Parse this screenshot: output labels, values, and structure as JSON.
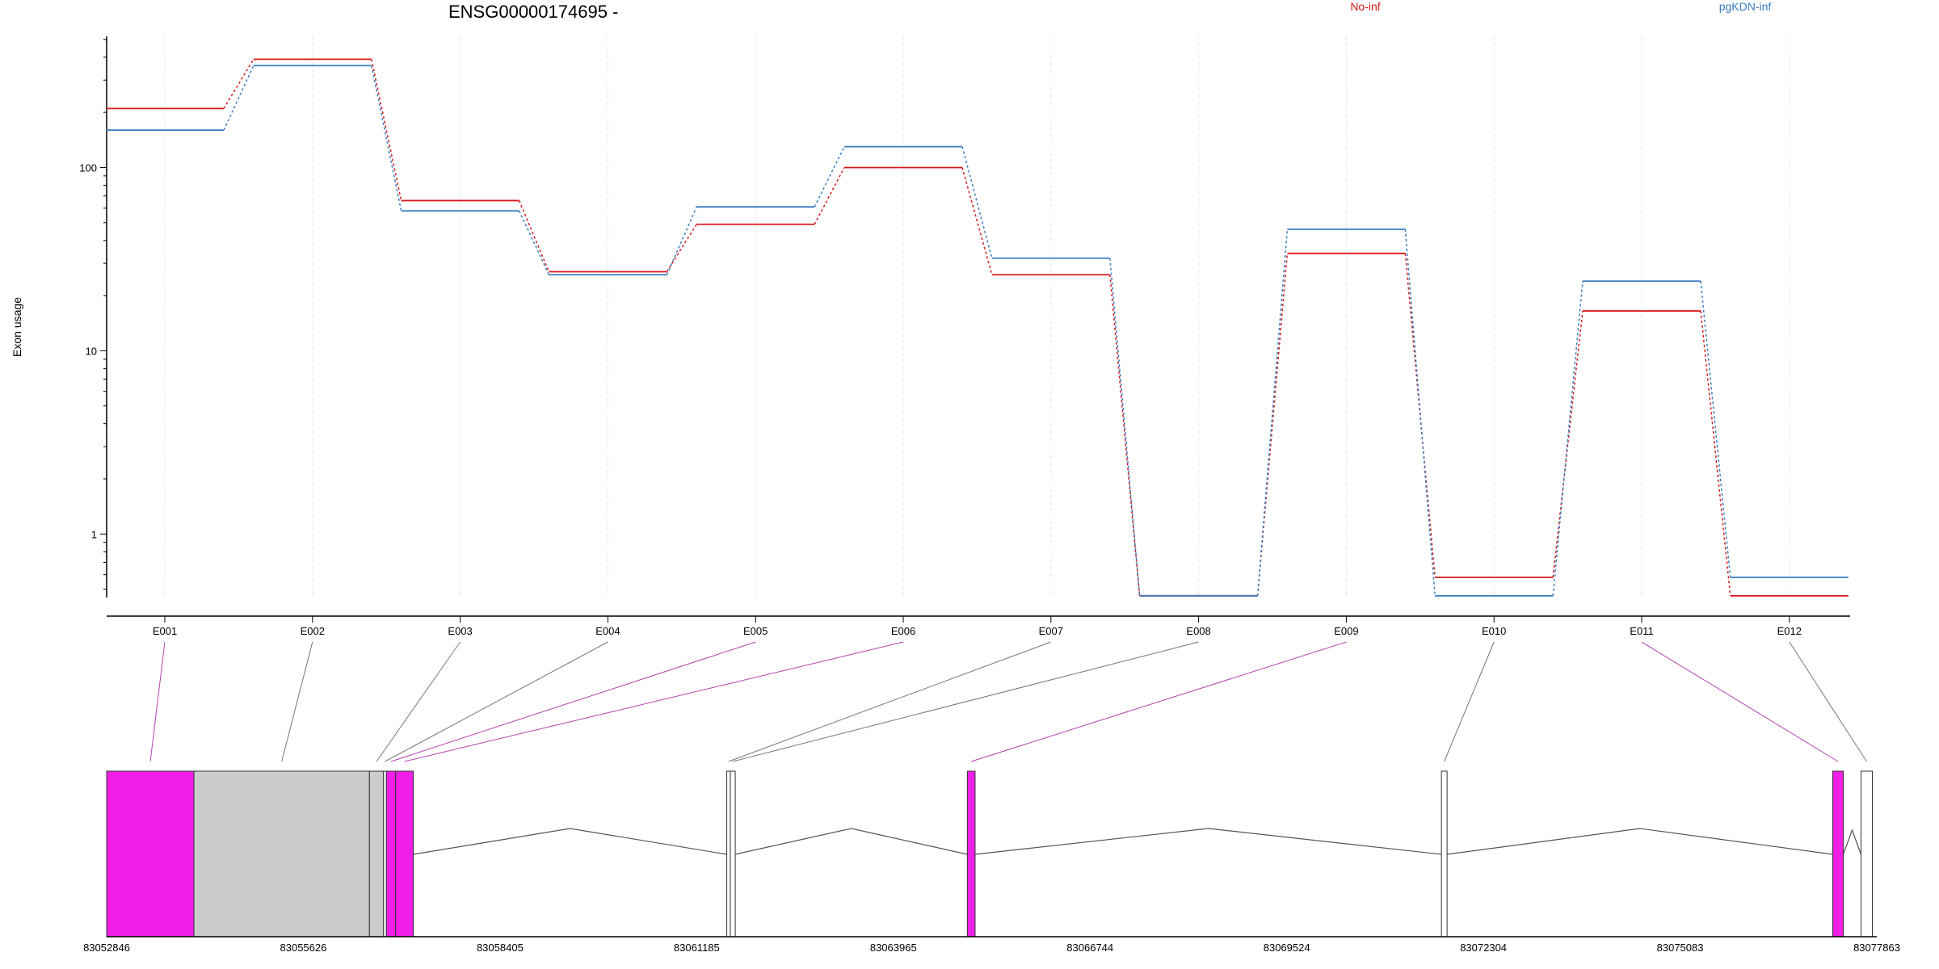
{
  "chart_data": {
    "type": "line",
    "title": "ENSG00000174695 -",
    "ylabel": "Exon usage",
    "xlabel": "",
    "y_scale": "log",
    "ylim": [
      0.45,
      520
    ],
    "y_ticks": [
      1,
      10,
      100
    ],
    "y_tick_labels": [
      "1",
      "10",
      "100"
    ],
    "grid": "vertical-dashed",
    "legend_position": "top",
    "categories": [
      "E001",
      "E002",
      "E003",
      "E004",
      "E005",
      "E006",
      "E007",
      "E008",
      "E009",
      "E010",
      "E011",
      "E012"
    ],
    "series": [
      {
        "name": "No-inf",
        "color": "#d7191c",
        "values": [
          210,
          390,
          66,
          27,
          49,
          100,
          26,
          0.46,
          34,
          0.58,
          16.5,
          0.46
        ]
      },
      {
        "name": "pgKDN-inf",
        "color": "#3a7dc1",
        "values": [
          160,
          360,
          58,
          26,
          61,
          130,
          32,
          0.46,
          46,
          0.46,
          24,
          0.58
        ]
      }
    ],
    "gene_model": {
      "genomic_ticks": [
        "83052846",
        "83055626",
        "83058405",
        "83061185",
        "83063965",
        "83066744",
        "83069524",
        "83072304",
        "83075083",
        "83077863"
      ],
      "genomic_range": [
        83052846,
        83077863
      ],
      "highlight_color": "#f01fe8",
      "exons": [
        {
          "exon": "E001",
          "start": 83052846,
          "end": 83054080,
          "highlight": true
        },
        {
          "exon": "E002",
          "start": 83054080,
          "end": 83056560,
          "highlight": false
        },
        {
          "exon": "E003",
          "start": 83056560,
          "end": 83056760,
          "highlight": false
        },
        {
          "exon": "E004",
          "start": 83056760,
          "end": 83056800,
          "highlight": false
        },
        {
          "exon": "E005",
          "start": 83056800,
          "end": 83056930,
          "highlight": true
        },
        {
          "exon": "E006",
          "start": 83056930,
          "end": 83057180,
          "highlight": true
        },
        {
          "exon": "E007",
          "start": 83061610,
          "end": 83061660,
          "highlight": false
        },
        {
          "exon": "E008",
          "start": 83061660,
          "end": 83061730,
          "highlight": false
        },
        {
          "exon": "E009",
          "start": 83065010,
          "end": 83065120,
          "highlight": true
        },
        {
          "exon": "E010",
          "start": 83071710,
          "end": 83071790,
          "highlight": false
        },
        {
          "exon": "E011",
          "start": 83077240,
          "end": 83077390,
          "highlight": true
        },
        {
          "exon": "E012",
          "start": 83077640,
          "end": 83077800,
          "highlight": false
        }
      ]
    }
  }
}
